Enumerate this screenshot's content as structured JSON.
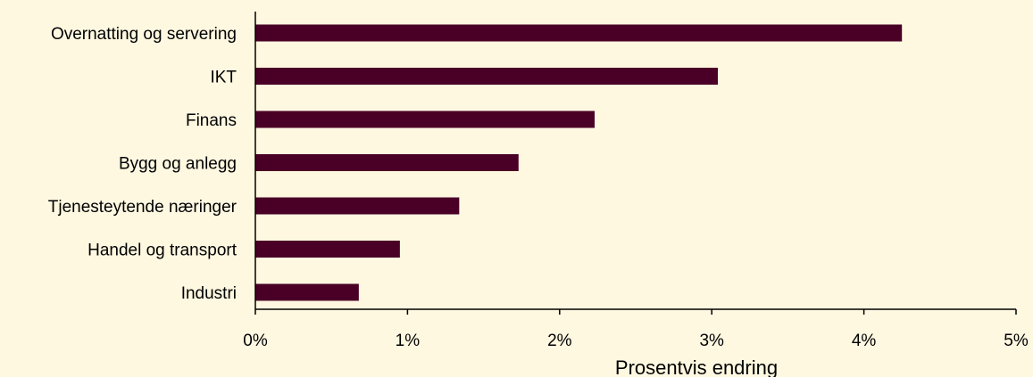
{
  "chart_data": {
    "type": "bar",
    "orientation": "horizontal",
    "categories": [
      "Overnatting og servering",
      "IKT",
      "Finans",
      "Bygg og anlegg",
      "Tjenesteytende næringer",
      "Handel og transport",
      "Industri"
    ],
    "values": [
      4.25,
      3.04,
      2.23,
      1.73,
      1.34,
      0.95,
      0.68
    ],
    "xlabel": "Prosentvis endring",
    "ylabel": "",
    "xlim": [
      0,
      5
    ],
    "x_ticks": [
      0,
      1,
      2,
      3,
      4,
      5
    ],
    "x_tick_labels": [
      "0%",
      "1%",
      "2%",
      "3%",
      "4%",
      "5%"
    ],
    "grid": false,
    "colors": {
      "bar": "#4a0026",
      "background": "#fef8e1",
      "axis": "#000000"
    }
  }
}
